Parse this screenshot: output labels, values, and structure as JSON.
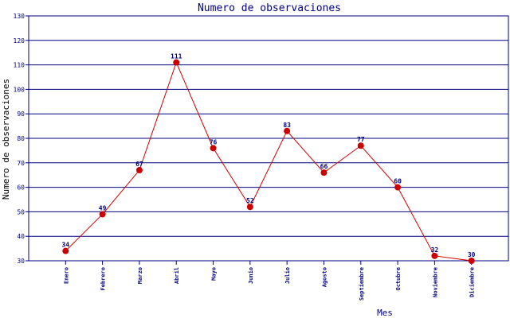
{
  "chart_data": {
    "type": "line",
    "title": "Numero de observaciones",
    "xlabel": "Mes",
    "ylabel": "Numero de observaciones",
    "categories": [
      "Enero",
      "Febrero",
      "Marzo",
      "Abril",
      "Mayo",
      "Junio",
      "Julio",
      "Agosto",
      "Septiembre",
      "Octubre",
      "Noviembre",
      "Diciembre"
    ],
    "series": [
      {
        "values": [
          34,
          49,
          67,
          111,
          76,
          52,
          83,
          66,
          77,
          60,
          32,
          30
        ],
        "color": "#cc0000"
      }
    ],
    "ylim": [
      30,
      130
    ],
    "yticks": [
      30,
      40,
      50,
      60,
      70,
      80,
      90,
      100,
      110,
      120,
      130
    ],
    "grid": "horizontal",
    "colors": {
      "title": "#000080",
      "grid": "#000080",
      "axis_text": "#000080",
      "line": "#cc0000",
      "marker": "#cc0000"
    }
  }
}
